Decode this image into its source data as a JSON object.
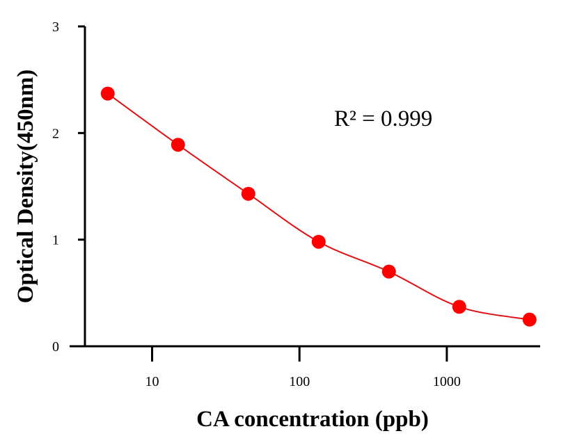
{
  "chart_data": {
    "type": "scatter",
    "title": "",
    "xlabel": "CA concentration (ppb)",
    "ylabel": "Optical Density(450nm)",
    "x_scale": "log",
    "xlim": [
      3.5,
      4300
    ],
    "ylim": [
      0,
      3
    ],
    "x_ticks": [
      10,
      100,
      1000
    ],
    "x_tick_labels": [
      "10",
      "100",
      "1000"
    ],
    "y_ticks": [
      0,
      1,
      2,
      3
    ],
    "y_tick_labels": [
      "0",
      "1",
      "2",
      "3"
    ],
    "grid": false,
    "series": [
      {
        "x": [
          5,
          15,
          45,
          135,
          405,
          1215,
          3645
        ],
        "y": [
          2.37,
          1.89,
          1.43,
          0.98,
          0.7,
          0.37,
          0.25
        ],
        "color": "#ff0000",
        "fit_color": "#dd1111"
      }
    ],
    "annotations": [
      {
        "text": "R² = 0.999"
      }
    ]
  }
}
